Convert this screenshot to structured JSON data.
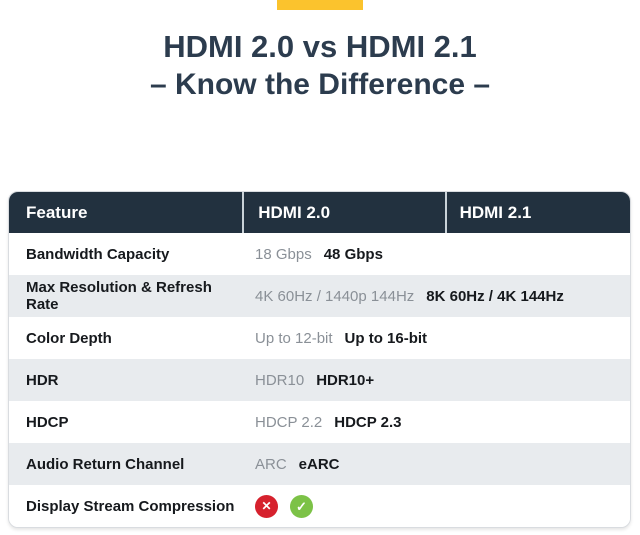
{
  "title": {
    "line1": "HDMI 2.0 vs HDMI 2.1",
    "line2": "– Know the Difference –"
  },
  "table": {
    "columns": [
      "Feature",
      "HDMI 2.0",
      "HDMI 2.1"
    ],
    "rows": [
      {
        "feature": "Bandwidth Capacity",
        "hdmi20": "18 Gbps",
        "hdmi21": "48 Gbps"
      },
      {
        "feature": "Max Resolution & Refresh Rate",
        "hdmi20": "4K 60Hz / 1440p 144Hz",
        "hdmi21": "8K 60Hz / 4K 144Hz"
      },
      {
        "feature": "Color Depth",
        "hdmi20": "Up to 12-bit",
        "hdmi21": "Up to 16-bit"
      },
      {
        "feature": "HDR",
        "hdmi20": "HDR10",
        "hdmi21": "HDR10+"
      },
      {
        "feature": "HDCP",
        "hdmi20": "HDCP 2.2",
        "hdmi21": "HDCP 2.3"
      },
      {
        "feature": "Audio Return Channel",
        "hdmi20": "ARC",
        "hdmi21": "eARC"
      },
      {
        "feature": "Display Stream Compression",
        "hdmi20_icon": "cross-icon",
        "hdmi21_icon": "check-icon"
      }
    ]
  },
  "icons": {
    "cross_glyph": "✕",
    "check_glyph": "✓"
  },
  "colors": {
    "banner": "#FBC32D",
    "title": "#2C3C4E",
    "header_bg": "#22313F",
    "header_divider": "#C9D2D8",
    "row_alt_bg": "#E8EBEE",
    "text_dark": "#16191D",
    "text_muted": "#8A9097",
    "cross_bg": "#D6212D",
    "check_bg": "#7CC247",
    "table_border": "#D9DCE0"
  }
}
